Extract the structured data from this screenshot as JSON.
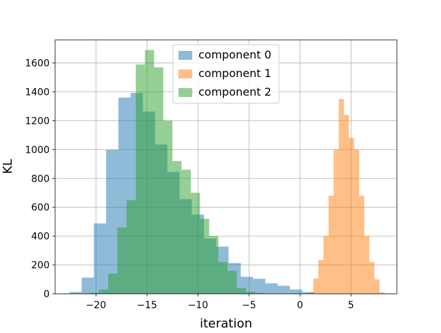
{
  "chart_data": {
    "type": "histogram",
    "xlabel": "iteration",
    "ylabel": "KL",
    "xlim": [
      -24.0,
      9.5
    ],
    "ylim": [
      0,
      1760
    ],
    "xticks": [
      -20,
      -15,
      -10,
      -5,
      0,
      5
    ],
    "xtick_labels": [
      "−20",
      "−15",
      "−10",
      "−5",
      "0",
      "5"
    ],
    "yticks": [
      0,
      200,
      400,
      600,
      800,
      1000,
      1200,
      1400,
      1600
    ],
    "ytick_labels": [
      "0",
      "200",
      "400",
      "600",
      "800",
      "1000",
      "1200",
      "1400",
      "1600"
    ],
    "grid": true,
    "legend_position": "upper-center",
    "series": [
      {
        "name": "component 0",
        "color": "#1f77b4",
        "alpha": 0.5,
        "bins": [
          [
            -22.6,
            -21.4,
            12
          ],
          [
            -21.4,
            -20.2,
            112
          ],
          [
            -20.2,
            -19.0,
            488
          ],
          [
            -19.0,
            -17.8,
            998
          ],
          [
            -17.8,
            -16.6,
            1360
          ],
          [
            -16.6,
            -15.4,
            1392
          ],
          [
            -15.4,
            -14.2,
            1263
          ],
          [
            -14.2,
            -13.0,
            1035
          ],
          [
            -13.0,
            -11.8,
            845
          ],
          [
            -11.8,
            -10.6,
            656
          ],
          [
            -10.6,
            -9.4,
            549
          ],
          [
            -9.4,
            -8.2,
            383
          ],
          [
            -8.2,
            -7.0,
            327
          ],
          [
            -7.0,
            -5.8,
            213
          ],
          [
            -5.8,
            -4.6,
            118
          ],
          [
            -4.6,
            -3.4,
            104
          ],
          [
            -3.4,
            -2.2,
            73
          ],
          [
            -2.2,
            -1.0,
            56
          ],
          [
            -1.0,
            0.2,
            30
          ],
          [
            0.2,
            1.4,
            12
          ]
        ]
      },
      {
        "name": "component 1",
        "color": "#ff7f0e",
        "alpha": 0.5,
        "bins": [
          [
            0.8,
            1.3,
            10
          ],
          [
            1.3,
            1.8,
            106
          ],
          [
            1.8,
            2.3,
            235
          ],
          [
            2.3,
            2.8,
            400
          ],
          [
            2.8,
            3.3,
            680
          ],
          [
            3.3,
            3.8,
            1000
          ],
          [
            3.8,
            4.3,
            1350
          ],
          [
            4.3,
            4.8,
            1240
          ],
          [
            4.8,
            5.3,
            1080
          ],
          [
            5.3,
            5.8,
            1000
          ],
          [
            5.8,
            6.3,
            680
          ],
          [
            6.3,
            6.8,
            400
          ],
          [
            6.8,
            7.3,
            220
          ],
          [
            7.3,
            7.8,
            100
          ],
          [
            7.8,
            8.3,
            10
          ]
        ]
      },
      {
        "name": "component 2",
        "color": "#2ca02c",
        "alpha": 0.5,
        "bins": [
          [
            -20.6,
            -19.7,
            8
          ],
          [
            -19.7,
            -18.8,
            30
          ],
          [
            -18.8,
            -17.9,
            140
          ],
          [
            -17.9,
            -17.0,
            460
          ],
          [
            -17.0,
            -16.1,
            650
          ],
          [
            -16.1,
            -15.2,
            1590
          ],
          [
            -15.2,
            -14.3,
            1690
          ],
          [
            -14.3,
            -13.4,
            1570
          ],
          [
            -13.4,
            -12.5,
            1200
          ],
          [
            -12.5,
            -11.6,
            920
          ],
          [
            -11.6,
            -10.7,
            860
          ],
          [
            -10.7,
            -9.8,
            700
          ],
          [
            -9.8,
            -8.9,
            520
          ],
          [
            -8.9,
            -8.0,
            400
          ],
          [
            -8.0,
            -7.1,
            220
          ],
          [
            -7.1,
            -6.2,
            160
          ],
          [
            -6.2,
            -5.3,
            40
          ],
          [
            -5.3,
            -4.4,
            14
          ],
          [
            -4.4,
            -3.5,
            6
          ]
        ]
      }
    ]
  }
}
